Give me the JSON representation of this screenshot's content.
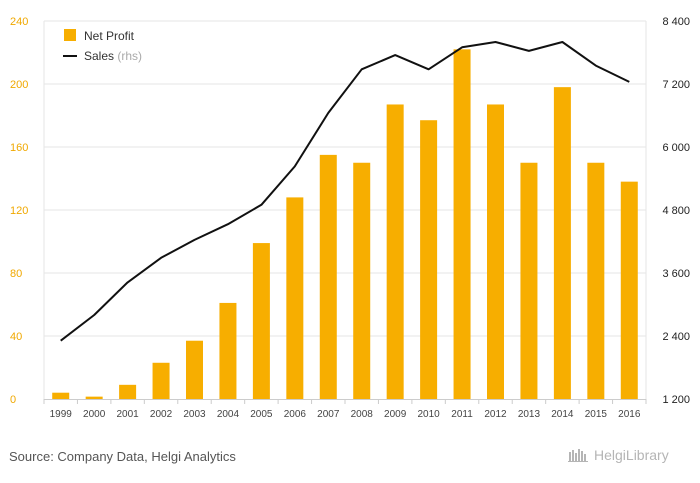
{
  "chart_data": {
    "type": "bar+line",
    "categories": [
      "1999",
      "2000",
      "2001",
      "2002",
      "2003",
      "2004",
      "2005",
      "2006",
      "2007",
      "2008",
      "2009",
      "2010",
      "2011",
      "2012",
      "2013",
      "2014",
      "2015",
      "2016"
    ],
    "series": [
      {
        "name": "Net Profit",
        "type": "bar",
        "axis": "left",
        "values": [
          4,
          1.5,
          9,
          23,
          37,
          61,
          99,
          128,
          155,
          150,
          187,
          177,
          222,
          187,
          150,
          198,
          150,
          138
        ]
      },
      {
        "name": "Sales",
        "type": "line",
        "axis": "right",
        "values": [
          2310,
          2800,
          3420,
          3890,
          4230,
          4530,
          4900,
          5630,
          6650,
          7480,
          7750,
          7480,
          7900,
          8000,
          7830,
          8000,
          7550,
          7240
        ]
      }
    ],
    "legend": [
      {
        "label": "Net Profit",
        "suffix": ""
      },
      {
        "label": "Sales",
        "suffix": " (rhs)"
      }
    ],
    "left_axis": {
      "min": 0,
      "max": 240,
      "ticks": [
        0,
        40,
        80,
        120,
        160,
        200,
        240
      ],
      "tick_labels": [
        "0",
        "40",
        "80",
        "120",
        "160",
        "200",
        "240"
      ]
    },
    "right_axis": {
      "min": 1200,
      "max": 8400,
      "ticks": [
        1200,
        2400,
        3600,
        4800,
        6000,
        7200,
        8400
      ],
      "tick_labels": [
        "1 200",
        "2 400",
        "3 600",
        "4 800",
        "6 000",
        "7 200",
        "8 400"
      ]
    },
    "grid": true,
    "legend_position": "top-left",
    "colors": {
      "bar": "#f7ae00",
      "line": "#111111",
      "left_ticks": "#f0a800",
      "grid": "#e6e6e6"
    }
  },
  "footer": {
    "source": "Source: Company Data, Helgi Analytics",
    "brand": "HelgiLibrary"
  }
}
